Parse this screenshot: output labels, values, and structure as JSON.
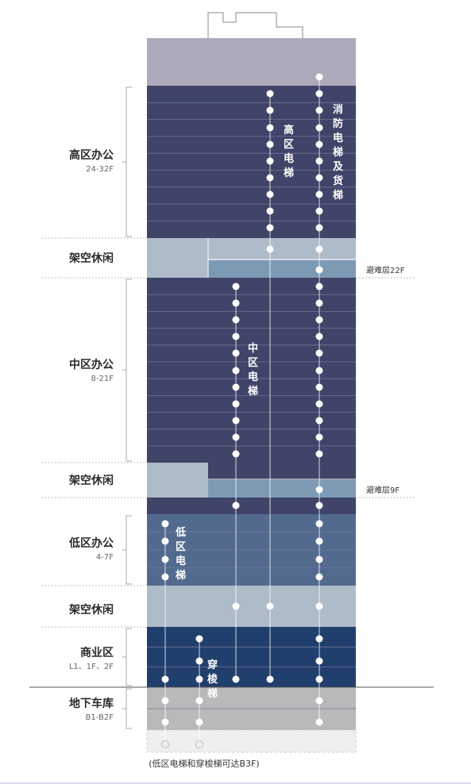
{
  "zones": {
    "high": {
      "name": "高区办公",
      "range": "24-32F"
    },
    "sky1": {
      "name": "架空休闲"
    },
    "mid": {
      "name": "中区办公",
      "range": "8-21F"
    },
    "sky2": {
      "name": "架空休闲"
    },
    "low": {
      "name": "低区办公",
      "range": "4-7F"
    },
    "sky3": {
      "name": "架空休闲"
    },
    "retail": {
      "name": "商业区",
      "range": "L1、1F、2F"
    },
    "garage": {
      "name": "地下车库",
      "range": "B1-B2F"
    }
  },
  "elevators": {
    "high": [
      "高",
      "区",
      "电",
      "梯"
    ],
    "fire": [
      "消",
      "防",
      "电",
      "梯",
      "及",
      "货",
      "梯"
    ],
    "mid": [
      "中",
      "区",
      "电",
      "梯"
    ],
    "low": [
      "低",
      "区",
      "电",
      "梯"
    ],
    "shuttle": [
      "穿",
      "梭",
      "梯"
    ]
  },
  "refuge_floors": {
    "upper": "避难层22F",
    "lower": "避难层9F"
  },
  "footnote": "(低区电梯和穿梭梯可达B3F)",
  "colors": {
    "roof": "#aeaabb",
    "office_dark": "#3f4468",
    "sky_light": "#aebbc9",
    "refuge": "#7d9ab5",
    "low_office": "#536a8f",
    "retail": "#213f6d",
    "garage": "#b9b9b9",
    "basement": "#efefef"
  }
}
